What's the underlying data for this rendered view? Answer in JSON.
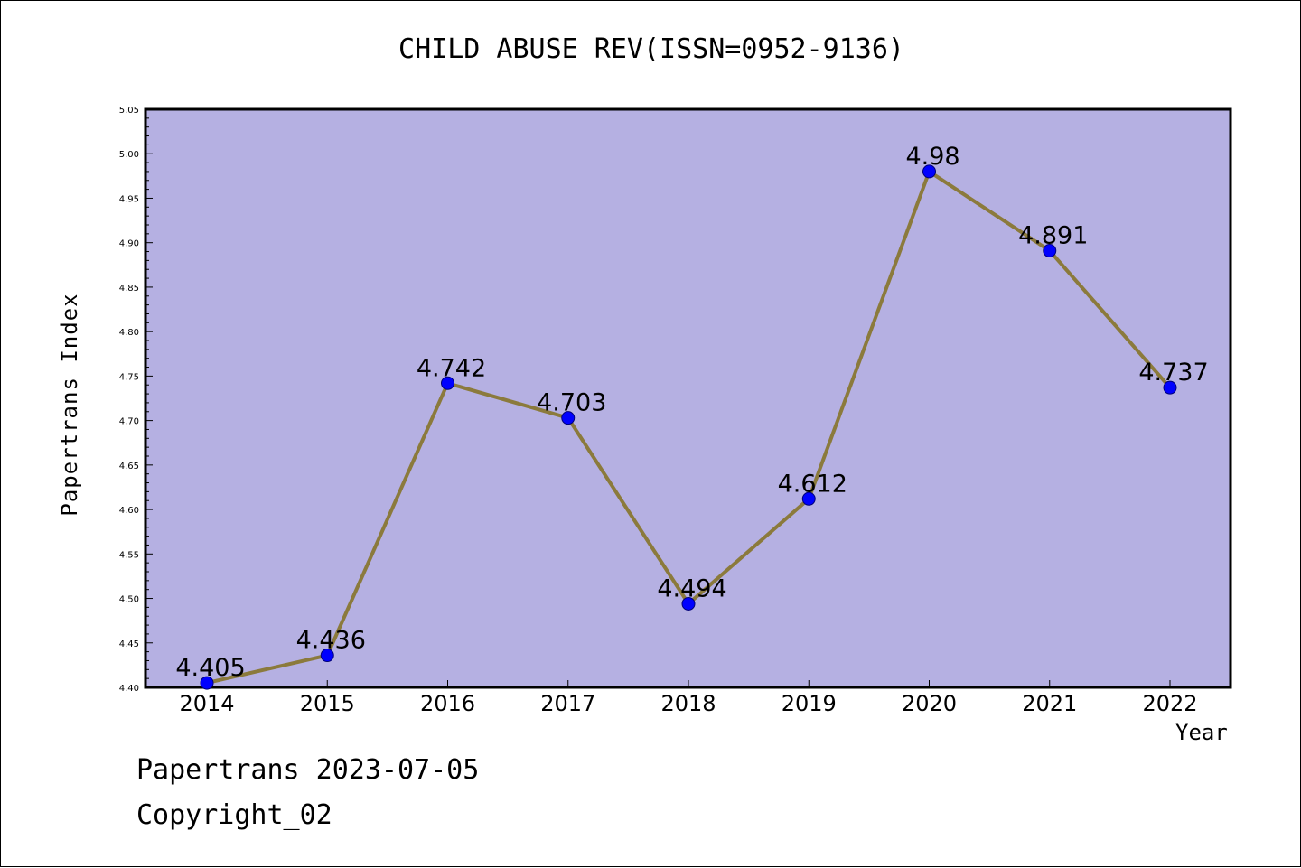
{
  "chart_data": {
    "type": "line",
    "title": "CHILD ABUSE REV(ISSN=0952-9136)",
    "xlabel": "Year",
    "ylabel": "Papertrans Index",
    "categories": [
      "2014",
      "2015",
      "2016",
      "2017",
      "2018",
      "2019",
      "2020",
      "2021",
      "2022"
    ],
    "series": [
      {
        "values": [
          4.405,
          4.436,
          4.742,
          4.703,
          4.494,
          4.612,
          4.98,
          4.891,
          4.737
        ],
        "labels": [
          "4.405",
          "4.436",
          "4.742",
          "4.703",
          "4.494",
          "4.612",
          "4.98",
          "4.891",
          "4.737"
        ]
      }
    ],
    "ylim": [
      4.4,
      5.05
    ],
    "yticks": [
      "4.40",
      "4.45",
      "4.50",
      "4.55",
      "4.60",
      "4.65",
      "4.70",
      "4.75",
      "4.80",
      "4.85",
      "4.90",
      "4.95",
      "5.00",
      "5.05"
    ],
    "grid": false,
    "legend": "none"
  },
  "footer": {
    "date_text": "Papertrans 2023-07-05",
    "copyright_text": "Copyright_02"
  },
  "colors": {
    "plot_background": "#b5b0e2",
    "line": "#8b7a3c",
    "marker": "#0000ff",
    "marker_edge": "#00007a",
    "axis": "#000000"
  }
}
